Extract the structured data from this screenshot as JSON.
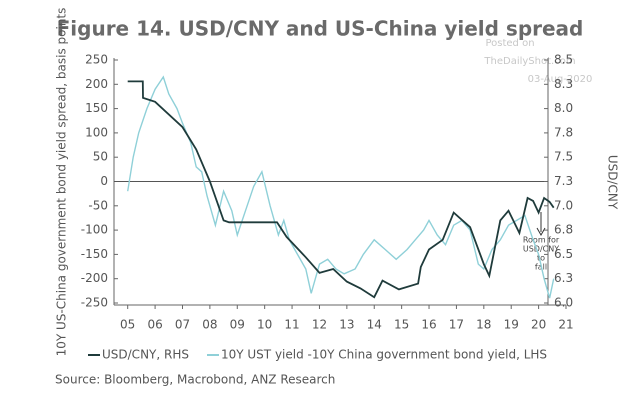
{
  "chart_data": {
    "type": "line",
    "title": "Figure 14. USD/CNY and US-China yield spread",
    "watermark": [
      "Posted on",
      "TheDailyShot.com",
      "03-Aug-2020"
    ],
    "y_label": "10Y US-China government bond yield spread, basis points",
    "y2_label": "USD/CNY",
    "annotation": [
      "Room for",
      "USD/CNY",
      "to",
      "fall"
    ],
    "source": "Source: Bloomberg, Macrobond, ANZ Research",
    "xlim": [
      2004.5,
      2021
    ],
    "xticks": [
      {
        "value": 2005,
        "label": "05"
      },
      {
        "value": 2006,
        "label": "06"
      },
      {
        "value": 2007,
        "label": "07"
      },
      {
        "value": 2008,
        "label": "08"
      },
      {
        "value": 2009,
        "label": "09"
      },
      {
        "value": 2010,
        "label": "10"
      },
      {
        "value": 2011,
        "label": "11"
      },
      {
        "value": 2012,
        "label": "12"
      },
      {
        "value": 2013,
        "label": "13"
      },
      {
        "value": 2014,
        "label": "14"
      },
      {
        "value": 2015,
        "label": "15"
      },
      {
        "value": 2016,
        "label": "16"
      },
      {
        "value": 2017,
        "label": "17"
      },
      {
        "value": 2018,
        "label": "18"
      },
      {
        "value": 2019,
        "label": "19"
      },
      {
        "value": 2020,
        "label": "20"
      },
      {
        "value": 2021,
        "label": "21"
      }
    ],
    "ylim": [
      -250,
      250
    ],
    "yticks": [
      -250,
      -200,
      -150,
      -100,
      -50,
      0,
      50,
      100,
      150,
      200,
      250
    ],
    "y2lim": [
      6.0,
      8.5
    ],
    "y2ticks": [
      {
        "value": 6.0,
        "label": "6.0"
      },
      {
        "value": 6.25,
        "label": "6.3"
      },
      6.5,
      {
        "value": 6.75,
        "label": "6.8"
      },
      {
        "value": 7.0,
        "label": "7.0"
      },
      {
        "value": 7.25,
        "label": "7.3"
      },
      7.5,
      {
        "value": 7.75,
        "label": "7.8"
      },
      {
        "value": 8.0,
        "label": "8.0"
      },
      {
        "value": 8.25,
        "label": "8.3"
      },
      8.5
    ],
    "series": [
      {
        "name": "USD/CNY, RHS",
        "color": "#1f3b3b",
        "axis": "y2",
        "x": [
          2005.0,
          2005.55,
          2005.56,
          2006.0,
          2007.0,
          2007.5,
          2008.0,
          2008.5,
          2008.7,
          2009.0,
          2010.0,
          2010.45,
          2010.8,
          2011.5,
          2012.0,
          2012.5,
          2013.0,
          2013.5,
          2014.0,
          2014.3,
          2014.9,
          2015.6,
          2015.7,
          2016.0,
          2016.5,
          2016.9,
          2017.5,
          2018.0,
          2018.2,
          2018.6,
          2018.9,
          2019.3,
          2019.6,
          2019.8,
          2020.0,
          2020.2,
          2020.4,
          2020.55
        ],
        "values": [
          8.28,
          8.28,
          8.11,
          8.07,
          7.81,
          7.58,
          7.25,
          6.85,
          6.83,
          6.83,
          6.83,
          6.83,
          6.68,
          6.47,
          6.31,
          6.35,
          6.22,
          6.15,
          6.06,
          6.23,
          6.14,
          6.2,
          6.37,
          6.55,
          6.65,
          6.93,
          6.78,
          6.4,
          6.28,
          6.85,
          6.95,
          6.72,
          7.08,
          7.05,
          6.93,
          7.08,
          7.04,
          6.98
        ]
      },
      {
        "name": "10Y UST yield -10Y China government bond yield, LHS",
        "color": "#8fd0d8",
        "x": [
          2005.0,
          2005.2,
          2005.4,
          2005.7,
          2006.0,
          2006.3,
          2006.5,
          2006.8,
          2007.0,
          2007.3,
          2007.5,
          2007.7,
          2007.9,
          2008.2,
          2008.5,
          2008.8,
          2009.0,
          2009.3,
          2009.6,
          2009.9,
          2010.2,
          2010.5,
          2010.7,
          2010.9,
          2011.2,
          2011.5,
          2011.7,
          2012.0,
          2012.3,
          2012.6,
          2012.9,
          2013.3,
          2013.6,
          2014.0,
          2014.4,
          2014.8,
          2015.2,
          2015.5,
          2015.8,
          2016.0,
          2016.3,
          2016.6,
          2016.9,
          2017.2,
          2017.5,
          2017.8,
          2018.0,
          2018.3,
          2018.6,
          2018.9,
          2019.2,
          2019.5,
          2019.8,
          2020.0,
          2020.2,
          2020.4,
          2020.55
        ],
        "values": [
          -20,
          50,
          100,
          150,
          190,
          215,
          180,
          150,
          120,
          80,
          30,
          20,
          -30,
          -90,
          -20,
          -60,
          -110,
          -60,
          -10,
          20,
          -50,
          -110,
          -80,
          -120,
          -150,
          -180,
          -230,
          -170,
          -160,
          -180,
          -190,
          -180,
          -150,
          -120,
          -140,
          -160,
          -140,
          -120,
          -100,
          -80,
          -110,
          -130,
          -90,
          -80,
          -100,
          -170,
          -180,
          -140,
          -120,
          -90,
          -80,
          -70,
          -120,
          -150,
          -200,
          -240,
          -200
        ]
      }
    ]
  }
}
